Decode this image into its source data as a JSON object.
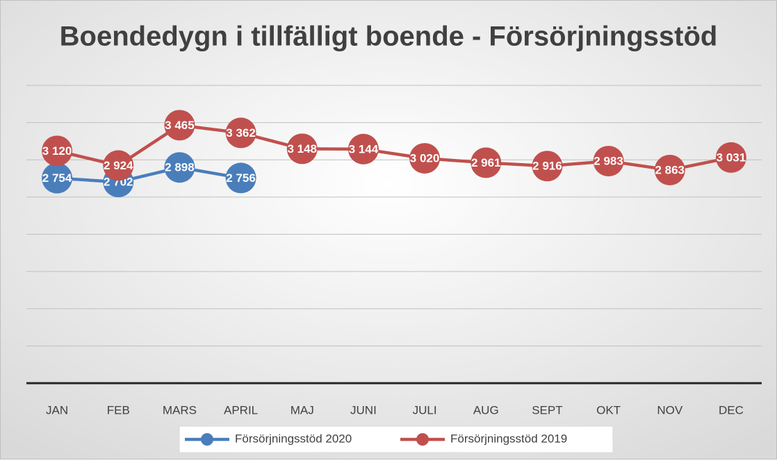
{
  "chart_data": {
    "type": "line",
    "title": "Boendedygn i tillfälligt boende - Försörjningsstöd",
    "categories": [
      "JAN",
      "FEB",
      "MARS",
      "APRIL",
      "MAJ",
      "JUNI",
      "JULI",
      "AUG",
      "SEPT",
      "OKT",
      "NOV",
      "DEC"
    ],
    "series": [
      {
        "name": "Försörjningsstöd 2020",
        "color": "#4a7ebb",
        "values": [
          2754,
          2702,
          2898,
          2756,
          null,
          null,
          null,
          null,
          null,
          null,
          null,
          null
        ],
        "value_labels": [
          "2 754",
          "2 702",
          "2 898",
          "2 756",
          null,
          null,
          null,
          null,
          null,
          null,
          null,
          null
        ]
      },
      {
        "name": "Försörjningsstöd 2019",
        "color": "#c0504d",
        "values": [
          3120,
          2924,
          3465,
          3362,
          3148,
          3144,
          3020,
          2961,
          2916,
          2983,
          2863,
          3031
        ],
        "value_labels": [
          "3 120",
          "2 924",
          "3 465",
          "3 362",
          "3 148",
          "3 144",
          "3 020",
          "2 961",
          "2 916",
          "2 983",
          "2 863",
          "3 031"
        ]
      }
    ],
    "ylim": [
      0,
      4000
    ],
    "yticks": [
      0,
      500,
      1000,
      1500,
      2000,
      2500,
      3000,
      3500,
      4000
    ],
    "grid": true
  }
}
